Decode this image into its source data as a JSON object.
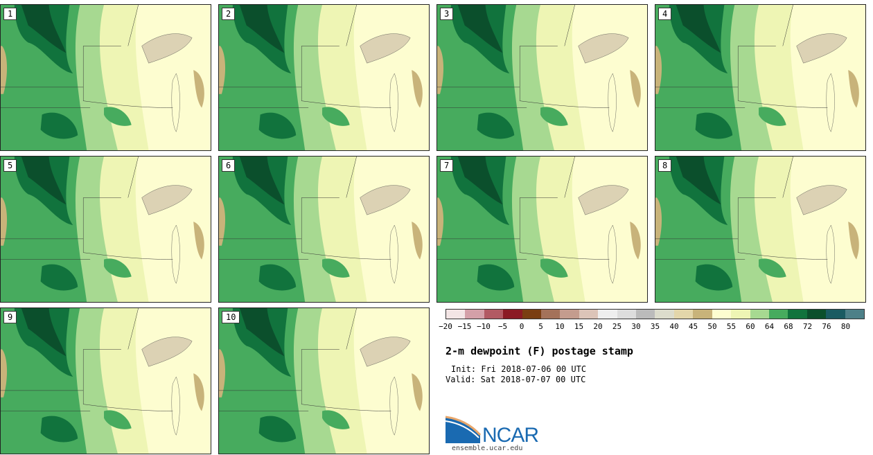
{
  "panels": [
    {
      "label": "1"
    },
    {
      "label": "2"
    },
    {
      "label": "3"
    },
    {
      "label": "4"
    },
    {
      "label": "5"
    },
    {
      "label": "6"
    },
    {
      "label": "7"
    },
    {
      "label": "8"
    },
    {
      "label": "9"
    },
    {
      "label": "10"
    }
  ],
  "colorbar": {
    "colors": [
      "#f3e5e5",
      "#d4a0a8",
      "#b25a63",
      "#8b1a24",
      "#7a3e12",
      "#a4725a",
      "#c49c8e",
      "#dcc4b8",
      "#eeeeee",
      "#dddddd",
      "#bbbbbb",
      "#dcdccc",
      "#e3d6aa",
      "#c8b37a",
      "#fdfdd0",
      "#eef5b4",
      "#a7d991",
      "#47ab5e",
      "#11733d",
      "#0b4f2c",
      "#1a5b62",
      "#4d8088"
    ],
    "ticks": [
      "−20",
      "−15",
      "−10",
      "−5",
      "0",
      "5",
      "10",
      "15",
      "20",
      "25",
      "30",
      "35",
      "40",
      "45",
      "50",
      "55",
      "60",
      "64",
      "68",
      "72",
      "76",
      "80"
    ]
  },
  "title": "2-m dewpoint (F) postage stamp",
  "init": "Init: Fri 2018-07-06 00 UTC",
  "valid": "Valid: Sat 2018-07-07 00 UTC",
  "logo": {
    "text": "NCAR",
    "url": "ensemble.ucar.edu"
  }
}
